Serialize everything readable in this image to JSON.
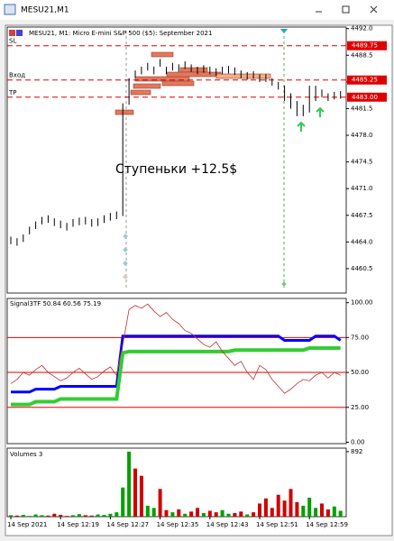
{
  "window": {
    "title": "MESU21,M1"
  },
  "chart_data": [
    {
      "type": "ohlc",
      "header": "MESU21, M1:  Micro E-mini S&P 500 ($5): September 2021",
      "annotation": "Ступеньки +12.5$",
      "color": "#000000",
      "high": [
        4464.7,
        4464.5,
        4465.0,
        4466.0,
        4466.7,
        4467.3,
        4467.5,
        4467.1,
        4466.8,
        4466.5,
        4467.0,
        4467.2,
        4467.3,
        4467.0,
        4467.1,
        4467.5,
        4467.8,
        4468.0,
        4482.2,
        4485.5,
        4486.5,
        4487.0,
        4487.5,
        4487.0,
        4488.0,
        4487.0,
        4487.5,
        4487.3,
        4487.7,
        4487.3,
        4487.0,
        4487.2,
        4487.0,
        4486.8,
        4487.0,
        4487.1,
        4486.9,
        4486.5,
        4486.3,
        4486.4,
        4486.0,
        4486.0,
        4485.5,
        4485.0,
        4484.5,
        4483.5,
        4482.5,
        4482.0,
        4484.5,
        4484.5,
        4484.0,
        4483.5,
        4483.7,
        4483.8
      ],
      "low": [
        4463.7,
        4463.5,
        4464.0,
        4465.0,
        4465.7,
        4466.3,
        4466.5,
        4466.1,
        4465.8,
        4465.5,
        4466.0,
        4466.2,
        4466.3,
        4466.0,
        4466.1,
        4466.5,
        4466.8,
        4467.0,
        4467.4,
        4482.0,
        4485.5,
        4486.0,
        4486.5,
        4486.0,
        4487.0,
        4486.0,
        4486.5,
        4486.3,
        4486.7,
        4486.3,
        4486.0,
        4486.2,
        4486.0,
        4485.8,
        4486.0,
        4486.1,
        4485.9,
        4485.5,
        4485.3,
        4485.4,
        4485.0,
        4485.0,
        4484.5,
        4484.0,
        4482.5,
        4481.5,
        4480.5,
        4480.5,
        4481.0,
        4482.5,
        4483.0,
        4482.5,
        4482.7,
        4482.8
      ],
      "ylim": [
        4457.3,
        4492.2
      ],
      "yticks": [
        {
          "value": 4492,
          "label": "4492.0"
        },
        4488.5,
        {
          "value": 4485,
          "label": "4485.0"
        },
        4481.5,
        {
          "value": 4478,
          "label": "4478.0"
        },
        4474.5,
        {
          "value": 4471,
          "label": "4471.0"
        },
        4467.5,
        {
          "value": 4464,
          "label": "4464.0"
        },
        4460.5
      ],
      "levels": [
        {
          "name": "SL",
          "value": 4489.75,
          "color": "#e00000"
        },
        {
          "name": "Вход",
          "value": 4485.25,
          "color": "#e00000"
        },
        {
          "name": "TP",
          "value": 4483,
          "label": "4483.00",
          "color": "#e00000"
        }
      ]
    },
    {
      "type": "line",
      "title": "Signal3TF 50.84 60.56 75.19",
      "series": [
        {
          "color": "#0000ff",
          "width": 3,
          "values": [
            36,
            36,
            36,
            36,
            38,
            38,
            38,
            38,
            40,
            40,
            40,
            40,
            40,
            40,
            40,
            40,
            40,
            40,
            76,
            76,
            76,
            76,
            76,
            76,
            76,
            76,
            76,
            76,
            76,
            76,
            76,
            76,
            76,
            76,
            76,
            76,
            76,
            76,
            76,
            76,
            76,
            76,
            76,
            76,
            73,
            73,
            73,
            73,
            73,
            76,
            76,
            76,
            76,
            73
          ]
        },
        {
          "color": "#33cc33",
          "width": 4,
          "values": [
            27,
            27,
            27,
            27,
            29,
            29,
            29,
            29,
            31,
            31,
            31,
            31,
            31,
            31,
            31,
            31,
            31,
            31,
            64,
            65,
            65,
            65,
            65,
            65,
            65,
            65,
            65,
            65,
            65,
            65,
            65,
            65,
            65,
            65,
            65,
            65,
            66,
            66,
            66,
            66,
            66,
            66,
            66,
            66,
            66,
            66,
            66,
            66,
            67.5,
            67.5,
            67.5,
            67.5,
            67.5,
            67.5
          ]
        },
        {
          "color": "#c03030",
          "width": 0.8,
          "values": [
            42,
            45,
            50,
            48,
            52,
            55,
            50,
            47,
            44,
            46,
            50,
            53,
            49,
            45,
            47,
            51,
            54,
            48,
            70,
            95,
            98,
            96,
            99,
            94,
            90,
            93,
            88,
            85,
            80,
            78,
            74,
            70,
            68,
            72,
            65,
            60,
            55,
            58,
            50,
            45,
            55,
            52,
            45,
            40,
            35,
            38,
            42,
            45,
            44,
            48,
            50,
            46,
            50,
            48
          ]
        }
      ],
      "levels": [
        75,
        50,
        25
      ],
      "level_color": "#e00000",
      "ylim": [
        -1,
        103
      ],
      "yticks": [
        {
          "value": 100,
          "label": "100.00"
        },
        {
          "value": 75,
          "label": "75.00"
        },
        {
          "value": 50,
          "label": "50.00"
        },
        {
          "value": 25,
          "label": "25.00"
        },
        {
          "value": 0,
          "label": "0.00"
        }
      ]
    },
    {
      "type": "bar",
      "title": "Volumes 3",
      "categories": [
        "14 Sep 2021",
        null,
        null,
        null,
        null,
        null,
        null,
        null,
        "14 Sep 12:19",
        null,
        null,
        null,
        null,
        null,
        null,
        null,
        "14 Sep 12:27",
        null,
        null,
        null,
        null,
        null,
        null,
        null,
        "14 Sep 12:35",
        null,
        null,
        null,
        null,
        null,
        null,
        null,
        "14 Sep 12:43",
        null,
        null,
        null,
        null,
        null,
        null,
        null,
        "14 Sep 12:51",
        null,
        null,
        null,
        null,
        null,
        null,
        null,
        "14 Sep 12:59",
        null,
        null,
        null,
        null,
        null
      ],
      "values": [
        20,
        15,
        25,
        10,
        30,
        20,
        15,
        40,
        25,
        10,
        20,
        35,
        20,
        15,
        30,
        25,
        40,
        60,
        400,
        892,
        660,
        560,
        150,
        120,
        380,
        90,
        60,
        100,
        40,
        70,
        120,
        50,
        80,
        60,
        90,
        40,
        50,
        70,
        30,
        60,
        180,
        250,
        120,
        300,
        220,
        380,
        200,
        150,
        260,
        120,
        180,
        100,
        140,
        80
      ],
      "colors": [
        "#00a000",
        "#d00000",
        "#00a000",
        "#00a000",
        "#00a000",
        "#00a000",
        "#d00000",
        "#d00000",
        "#d00000",
        "#d00000",
        "#00a000",
        "#00a000",
        "#d00000",
        "#d00000",
        "#00a000",
        "#00a000",
        "#00a000",
        "#00a000",
        "#00a000",
        "#00a000",
        "#d00000",
        "#d00000",
        "#00a000",
        "#00a000",
        "#d00000",
        "#d00000",
        "#00a000",
        "#d00000",
        "#00a000",
        "#d00000",
        "#d00000",
        "#00a000",
        "#d00000",
        "#d00000",
        "#00a000",
        "#00a000",
        "#d00000",
        "#d00000",
        "#00a000",
        "#d00000",
        "#d00000",
        "#d00000",
        "#d00000",
        "#d00000",
        "#d00000",
        "#d00000",
        "#d00000",
        "#00a000",
        "#00a000",
        "#00a000",
        "#d00000",
        "#d00000",
        "#00a000",
        "#00a000"
      ],
      "ylim": [
        0,
        940
      ],
      "yticks": [
        892
      ]
    }
  ]
}
